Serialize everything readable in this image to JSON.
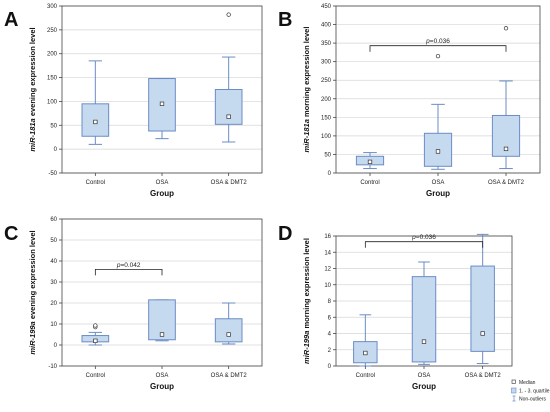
{
  "colors": {
    "box_fill": "#c5d9ef",
    "box_stroke": "#6b8cc6",
    "axis": "#444444",
    "grid": "#d6d6d6",
    "text": "#222222"
  },
  "legend": {
    "items": [
      "Median",
      "1. - 3. quartile",
      "Non-outliers"
    ]
  },
  "chart_data": [
    {
      "type": "boxplot",
      "panel_label": "A",
      "title": "",
      "xlabel": "Group",
      "ylabel_gene": "miR-181a",
      "ylabel_rest": " evening expression level",
      "ylim": [
        -50,
        300
      ],
      "yticks": [
        -50,
        0,
        50,
        100,
        150,
        200,
        250,
        300
      ],
      "categories": [
        "Control",
        "OSA",
        "OSA & DMT2"
      ],
      "boxes": [
        {
          "min": 10,
          "q1": 27,
          "median": 57,
          "q3": 95,
          "max": 185,
          "outliers": []
        },
        {
          "min": 22,
          "q1": 38,
          "median": 95,
          "q3": 148,
          "max": 148,
          "outliers": []
        },
        {
          "min": 15,
          "q1": 52,
          "median": 68,
          "q3": 125,
          "max": 193,
          "outliers": [
            282
          ]
        }
      ],
      "significance": null
    },
    {
      "type": "boxplot",
      "panel_label": "B",
      "title": "",
      "xlabel": "Group",
      "ylabel_gene": "miR-181a",
      "ylabel_rest": " morning expression level",
      "ylim": [
        0,
        450
      ],
      "yticks": [
        0,
        50,
        100,
        150,
        200,
        250,
        300,
        350,
        400,
        450
      ],
      "categories": [
        "Control",
        "OSA",
        "OSA & DMT2"
      ],
      "boxes": [
        {
          "min": 12,
          "q1": 22,
          "median": 30,
          "q3": 45,
          "max": 55,
          "outliers": []
        },
        {
          "min": 10,
          "q1": 18,
          "median": 58,
          "q3": 107,
          "max": 185,
          "outliers": [
            315
          ]
        },
        {
          "min": 12,
          "q1": 45,
          "median": 65,
          "q3": 155,
          "max": 248,
          "outliers": [
            390
          ]
        }
      ],
      "significance": {
        "from": 0,
        "to": 2,
        "y": 343,
        "label_p": "p",
        "label_value": "=0.036"
      }
    },
    {
      "type": "boxplot",
      "panel_label": "C",
      "title": "",
      "xlabel": "Group",
      "ylabel_gene": "miR-199a",
      "ylabel_rest": " evening expression level",
      "ylim": [
        -10,
        60
      ],
      "yticks": [
        -10,
        0,
        10,
        20,
        30,
        40,
        50,
        60
      ],
      "categories": [
        "Control",
        "OSA",
        "OSA & DMT2"
      ],
      "boxes": [
        {
          "min": 0,
          "q1": 1.5,
          "median": 2,
          "q3": 4.5,
          "max": 6,
          "outliers": [
            8.5,
            9.3
          ]
        },
        {
          "min": 2,
          "q1": 2.5,
          "median": 5,
          "q3": 21.5,
          "max": 21.5,
          "outliers": []
        },
        {
          "min": 0.5,
          "q1": 1.5,
          "median": 5,
          "q3": 12.5,
          "max": 20,
          "outliers": []
        }
      ],
      "significance": {
        "from": 0,
        "to": 1,
        "y": 36,
        "label_p": "p",
        "label_value": "=0.042"
      }
    },
    {
      "type": "boxplot",
      "panel_label": "D",
      "title": "",
      "xlabel": "Group",
      "ylabel_gene": "miR-199a",
      "ylabel_rest": " morning expression level",
      "ylim": [
        0,
        16
      ],
      "yticks": [
        0,
        2,
        4,
        6,
        8,
        10,
        12,
        14,
        16
      ],
      "categories": [
        "Control",
        "OSA",
        "OSA & DMT2"
      ],
      "boxes": [
        {
          "min": 0,
          "q1": 0.4,
          "median": 1.6,
          "q3": 3,
          "max": 6.3,
          "outliers": []
        },
        {
          "min": 0.2,
          "q1": 0.5,
          "median": 3,
          "q3": 11,
          "max": 12.8,
          "outliers": []
        },
        {
          "min": 0.3,
          "q1": 1.8,
          "median": 4,
          "q3": 12.3,
          "max": 16.2,
          "outliers": []
        }
      ],
      "significance": {
        "from": 0,
        "to": 2,
        "y": 15.3,
        "label_p": "p",
        "label_value": "=0.036"
      }
    }
  ]
}
